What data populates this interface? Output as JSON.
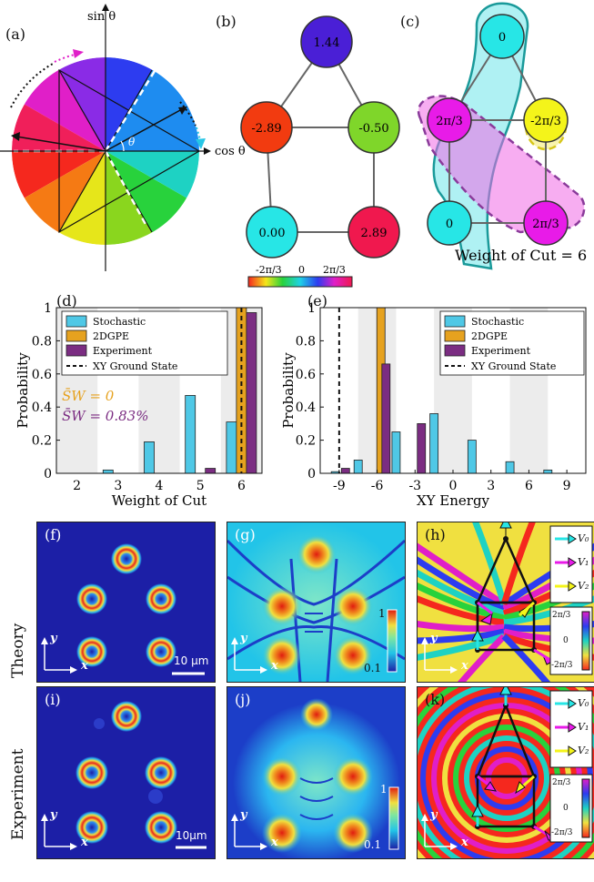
{
  "labels": {
    "a": "(a)",
    "b": "(b)",
    "c": "(c)",
    "d": "(d)",
    "e": "(e)",
    "f": "(f)",
    "g": "(g)",
    "h": "(h)",
    "i": "(i)",
    "j": "(j)",
    "k": "(k)"
  },
  "panel_a": {
    "sin": "sin θ",
    "cos": "cos θ",
    "theta": "θ"
  },
  "panel_b": {
    "nodes": [
      "1.44",
      "-2.89",
      "-0.50",
      "0.00",
      "2.89"
    ],
    "node_colors": [
      "#4a1fd6",
      "#f23b10",
      "#7fd62a",
      "#27e6e6",
      "#f0184e"
    ],
    "colorbar_ticks": [
      "-2π/3",
      "0",
      "2π/3"
    ]
  },
  "panel_c": {
    "nodes": [
      "0",
      "2π/3",
      "-2π/3",
      "0",
      "2π/3"
    ],
    "node_colors": [
      "#27e6e6",
      "#e81be8",
      "#f4f41a",
      "#27e6e6",
      "#e81be8"
    ],
    "caption": "Weight of Cut = 6"
  },
  "chart_data": [
    {
      "type": "bar",
      "panel": "(d)",
      "xlabel": "Weight of Cut",
      "ylabel": "Probability",
      "categories": [
        "2",
        "3",
        "4",
        "5",
        "6"
      ],
      "ylim": [
        0,
        1
      ],
      "yticks": [
        "0",
        "0.2",
        "0.4",
        "0.6",
        "0.8",
        "1"
      ],
      "series": [
        {
          "name": "Stochastic",
          "color": "#4fc8e6",
          "values": [
            0.0,
            0.02,
            0.19,
            0.47,
            0.31
          ]
        },
        {
          "name": "2DGPE",
          "color": "#e6a21f",
          "values": [
            0,
            0,
            0,
            0,
            1.0
          ]
        },
        {
          "name": "Experiment",
          "color": "#7b2d82",
          "values": [
            0,
            0,
            0,
            0.03,
            0.97
          ]
        }
      ],
      "ground_state_x": "6",
      "ground_state_label": "XY Ground State",
      "annotations": [
        {
          "text": "S̄W = 0",
          "color": "#e6a21f"
        },
        {
          "text": "S̄W = 0.83%",
          "color": "#7b2d82"
        }
      ]
    },
    {
      "type": "bar",
      "panel": "(e)",
      "xlabel": "XY Energy",
      "ylabel": "Probability",
      "xticks": [
        "-9",
        "-6",
        "-3",
        "0",
        "3",
        "6",
        "9"
      ],
      "xlim": [
        -10.5,
        10.5
      ],
      "ylim": [
        0,
        1
      ],
      "yticks": [
        "0",
        "0.2",
        "0.4",
        "0.6",
        "0.8",
        "1"
      ],
      "series": [
        {
          "name": "Stochastic",
          "color": "#4fc8e6",
          "x": [
            -7.5,
            -4.5,
            -1.5,
            1.5,
            4.5,
            7.5
          ],
          "values": [
            0.08,
            0.25,
            0.36,
            0.2,
            0.07,
            0.02
          ]
        },
        {
          "name": "2DGPE",
          "color": "#e6a21f",
          "x": [
            -5.7
          ],
          "values": [
            1.0
          ]
        },
        {
          "name": "Experiment",
          "color": "#7b2d82",
          "x": [
            -8.5,
            -5.3,
            -2.5
          ],
          "values": [
            0.03,
            0.66,
            0.3
          ]
        }
      ],
      "extra_stochastic": [
        {
          "x": -9.3,
          "value": 0.01
        }
      ],
      "ground_state_x": -9,
      "ground_state_label": "XY Ground State"
    }
  ],
  "rows": {
    "theory": "Theory",
    "experiment": "Experiment"
  },
  "scalebars": {
    "f": "10 μm",
    "i": "10μm"
  },
  "colorbars": {
    "g_top": "1",
    "g_bottom": "0.1",
    "j_top": "1",
    "j_bottom": "0.1"
  },
  "phase_legend": {
    "v0": "V₀",
    "v1": "V₁",
    "v2": "V₂",
    "top": "2π/3",
    "mid": "0",
    "bottom": "-2π/3"
  },
  "axes_labels": {
    "x": "x",
    "y": "y"
  }
}
